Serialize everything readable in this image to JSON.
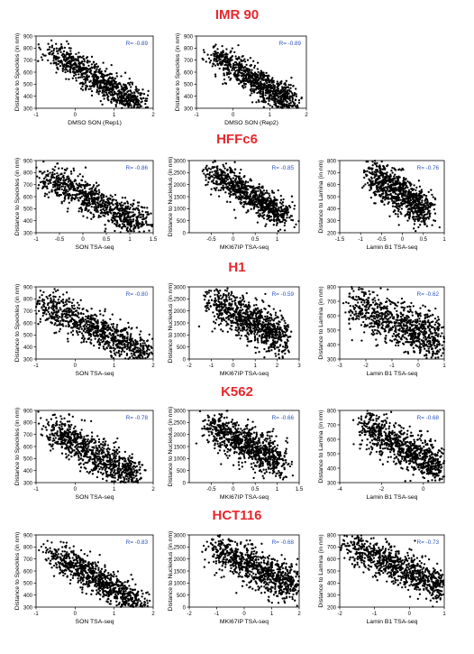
{
  "sections": [
    {
      "title": "IMR 90"
    },
    {
      "title": "HFFc6"
    },
    {
      "title": "H1"
    },
    {
      "title": "K562"
    },
    {
      "title": "HCT116"
    }
  ],
  "chart_data": [
    {
      "type": "scatter",
      "section": "IMR 90",
      "xlabel": "DMSO SON (Rep1)",
      "ylabel": "Distance to Speckles (in nm)",
      "xlim": [
        -1,
        2
      ],
      "ylim": [
        300,
        900
      ],
      "xticks": [
        -1,
        0,
        1,
        2
      ],
      "yticks": [
        300,
        400,
        500,
        600,
        700,
        800,
        900
      ],
      "r_label": "R= -0.89",
      "trend": {
        "x_start": -0.6,
        "y_start": 770,
        "x_end": 1.6,
        "y_end": 330,
        "noise": 55
      }
    },
    {
      "type": "scatter",
      "section": "IMR 90",
      "xlabel": "DMSO SON (Rep2)",
      "ylabel": "Distance to Speckles (in nm)",
      "xlim": [
        -1,
        2
      ],
      "ylim": [
        300,
        900
      ],
      "xticks": [
        -1,
        0,
        1,
        2
      ],
      "yticks": [
        300,
        400,
        500,
        600,
        700,
        800,
        900
      ],
      "r_label": "R= -0.89",
      "trend": {
        "x_start": -0.6,
        "y_start": 770,
        "x_end": 1.6,
        "y_end": 330,
        "noise": 55
      }
    },
    {
      "type": "scatter",
      "section": "HFFc6",
      "xlabel": "SON TSA-seq",
      "ylabel": "Distance to Speckles (in nm)",
      "xlim": [
        -1,
        1.5
      ],
      "ylim": [
        300,
        900
      ],
      "xticks": [
        -1,
        -0.5,
        0,
        0.5,
        1,
        1.5
      ],
      "yticks": [
        300,
        400,
        500,
        600,
        700,
        800,
        900
      ],
      "r_label": "R= -0.86",
      "trend": {
        "x_start": -0.8,
        "y_start": 760,
        "x_end": 1.3,
        "y_end": 370,
        "noise": 60
      }
    },
    {
      "type": "scatter",
      "section": "HFFc6",
      "xlabel": "MKI67IP TSA-seq",
      "ylabel": "Distance to Nucleolus (in nm)",
      "xlim": [
        -1,
        1.5
      ],
      "ylim": [
        0,
        3000
      ],
      "xticks": [
        -0.5,
        0,
        0.5,
        1
      ],
      "yticks": [
        0,
        500,
        1000,
        1500,
        2000,
        2500,
        3000
      ],
      "r_label": "R= -0.85",
      "trend": {
        "x_start": -0.55,
        "y_start": 2550,
        "x_end": 1.2,
        "y_end": 700,
        "noise": 280
      }
    },
    {
      "type": "scatter",
      "section": "HFFc6",
      "xlabel": "Lamin B1 TSA-seq",
      "ylabel": "Distance to Lamina (in nm)",
      "xlim": [
        -1.5,
        1
      ],
      "ylim": [
        200,
        800
      ],
      "xticks": [
        -1.5,
        -1,
        -0.5,
        0,
        0.5,
        1
      ],
      "yticks": [
        200,
        300,
        400,
        500,
        600,
        700,
        800
      ],
      "r_label": "R= -0.76",
      "trend": {
        "x_start": -0.8,
        "y_start": 700,
        "x_end": 0.6,
        "y_end": 360,
        "noise": 70
      }
    },
    {
      "type": "scatter",
      "section": "H1",
      "xlabel": "SON TSA-seq",
      "ylabel": "Distance to Speckles (in nm)",
      "xlim": [
        -1,
        2
      ],
      "ylim": [
        300,
        900
      ],
      "xticks": [
        -1,
        0,
        1,
        2
      ],
      "yticks": [
        300,
        400,
        500,
        600,
        700,
        800,
        900
      ],
      "r_label": "R= -0.80",
      "trend": {
        "x_start": -0.9,
        "y_start": 760,
        "x_end": 1.8,
        "y_end": 350,
        "noise": 70
      }
    },
    {
      "type": "scatter",
      "section": "H1",
      "xlabel": "MKI67IP TSA-seq",
      "ylabel": "Distance to Nucleolus (in nm)",
      "xlim": [
        -2,
        3
      ],
      "ylim": [
        0,
        3000
      ],
      "xticks": [
        -2,
        -1,
        0,
        1,
        2,
        3
      ],
      "yticks": [
        0,
        500,
        1000,
        1500,
        2000,
        2500,
        3000
      ],
      "r_label": "R= -0.59",
      "trend": {
        "x_start": -1.1,
        "y_start": 2450,
        "x_end": 2.3,
        "y_end": 800,
        "noise": 420
      }
    },
    {
      "type": "scatter",
      "section": "H1",
      "xlabel": "Lamin B1 TSA-seq",
      "ylabel": "Distance to Lamina (in nm)",
      "xlim": [
        -3,
        1
      ],
      "ylim": [
        300,
        800
      ],
      "xticks": [
        -3,
        -2,
        -1,
        0,
        1
      ],
      "yticks": [
        300,
        400,
        500,
        600,
        700,
        800
      ],
      "r_label": "R= -0.62",
      "trend": {
        "x_start": -2.6,
        "y_start": 690,
        "x_end": 0.9,
        "y_end": 410,
        "noise": 80
      }
    },
    {
      "type": "scatter",
      "section": "K562",
      "xlabel": "SON TSA-seq",
      "ylabel": "Distance to Speckles (in nm)",
      "xlim": [
        -1,
        2
      ],
      "ylim": [
        300,
        900
      ],
      "xticks": [
        -1,
        0,
        1,
        2
      ],
      "yticks": [
        300,
        400,
        500,
        600,
        700,
        800,
        900
      ],
      "r_label": "R= -0.78",
      "trend": {
        "x_start": -0.7,
        "y_start": 760,
        "x_end": 1.5,
        "y_end": 340,
        "noise": 75
      }
    },
    {
      "type": "scatter",
      "section": "K562",
      "xlabel": "MKI67IP TSA-seq",
      "ylabel": "Distance to Nucleolus (in nm)",
      "xlim": [
        -1,
        1.5
      ],
      "ylim": [
        0,
        3000
      ],
      "xticks": [
        -0.5,
        0,
        0.5,
        1,
        1.5
      ],
      "yticks": [
        0,
        500,
        1000,
        1500,
        2000,
        2500,
        3000
      ],
      "r_label": "R= -0.66",
      "trend": {
        "x_start": -0.6,
        "y_start": 2450,
        "x_end": 1.1,
        "y_end": 850,
        "noise": 380
      }
    },
    {
      "type": "scatter",
      "section": "K562",
      "xlabel": "Lamin B1 TSA-seq",
      "ylabel": "Distance to Lamina (in nm)",
      "xlim": [
        -4,
        1
      ],
      "ylim": [
        300,
        800
      ],
      "xticks": [
        -4,
        -2,
        0
      ],
      "yticks": [
        300,
        400,
        500,
        600,
        700,
        800
      ],
      "r_label": "R= -0.68",
      "trend": {
        "x_start": -2.9,
        "y_start": 700,
        "x_end": 0.8,
        "y_end": 400,
        "noise": 65
      }
    },
    {
      "type": "scatter",
      "section": "HCT116",
      "xlabel": "SON TSA-seq",
      "ylabel": "Distance to Speckles (in nm)",
      "xlim": [
        -1,
        2
      ],
      "ylim": [
        300,
        900
      ],
      "xticks": [
        -1,
        0,
        1,
        2
      ],
      "yticks": [
        300,
        400,
        500,
        600,
        700,
        800,
        900
      ],
      "r_label": "R= -0.83",
      "trend": {
        "x_start": -0.6,
        "y_start": 760,
        "x_end": 1.6,
        "y_end": 330,
        "noise": 60
      }
    },
    {
      "type": "scatter",
      "section": "HCT116",
      "xlabel": "MKI67IP TSA-seq",
      "ylabel": "Distance to Nucleolus (in nm)",
      "xlim": [
        -2,
        2
      ],
      "ylim": [
        0,
        3000
      ],
      "xticks": [
        -2,
        -1,
        0,
        1,
        2
      ],
      "yticks": [
        0,
        500,
        1000,
        1500,
        2000,
        2500,
        3000
      ],
      "r_label": "R= -0.68",
      "trend": {
        "x_start": -1.1,
        "y_start": 2400,
        "x_end": 1.9,
        "y_end": 850,
        "noise": 370
      }
    },
    {
      "type": "scatter",
      "section": "HCT116",
      "xlabel": "Lamin B1 TSA-seq",
      "ylabel": "Distance to Lamina (in nm)",
      "xlim": [
        -2,
        1
      ],
      "ylim": [
        200,
        800
      ],
      "xticks": [
        -2,
        -1,
        0,
        1
      ],
      "yticks": [
        200,
        300,
        400,
        500,
        600,
        700,
        800
      ],
      "r_label": "R= -0.73",
      "trend": {
        "x_start": -1.8,
        "y_start": 720,
        "x_end": 0.95,
        "y_end": 360,
        "noise": 70
      }
    }
  ]
}
